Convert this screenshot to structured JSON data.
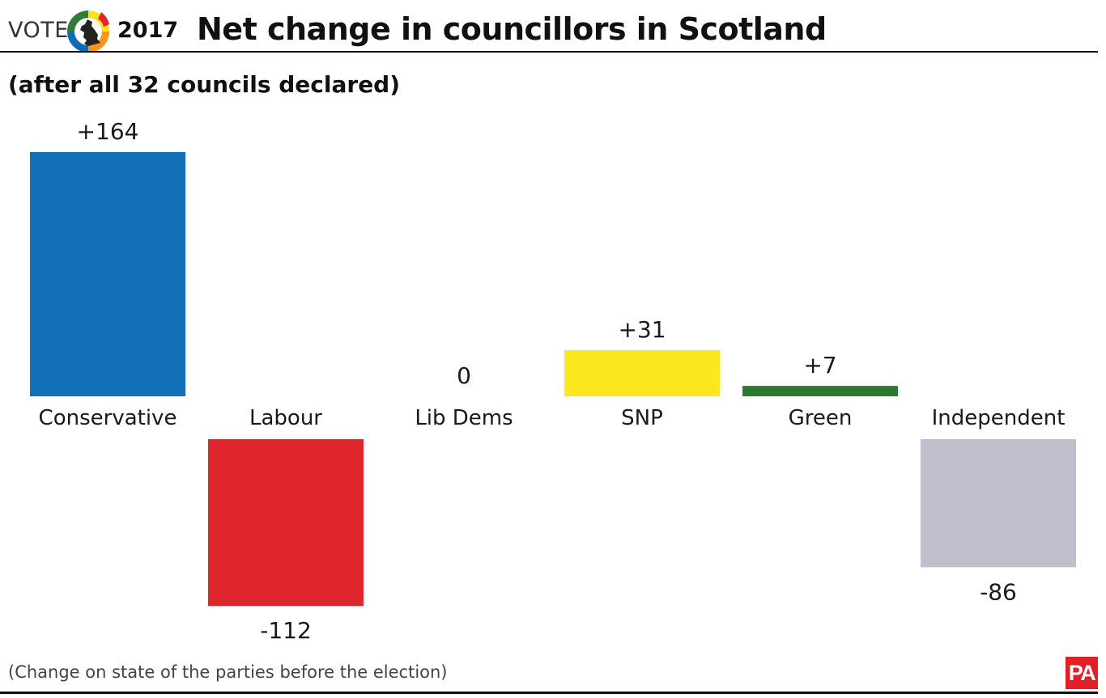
{
  "header": {
    "vote_label": "VOTE",
    "year_label": "2017",
    "title": "Net change in councillors in Scotland",
    "subtitle": "(after all 32 councils declared)",
    "logo_colors": [
      "#0f6cb4",
      "#e2232a",
      "#fbe21d",
      "#f7941d",
      "#2e7d32"
    ]
  },
  "footer": {
    "footnote": "(Change on state of the parties before the election)",
    "pa_logo": "PA",
    "pa_color": "#e01f26"
  },
  "chart_data": {
    "type": "bar",
    "title": "Net change in councillors in Scotland",
    "subtitle": "(after all 32 councils declared)",
    "categories": [
      "Conservative",
      "Labour",
      "Lib Dems",
      "SNP",
      "Green",
      "Independent"
    ],
    "values": [
      164,
      -112,
      0,
      31,
      7,
      -86
    ],
    "value_labels": [
      "+164",
      "-112",
      "0",
      "+31",
      "+7",
      "-86"
    ],
    "colors": [
      "#1170b8",
      "#e0262d",
      "#ffffff",
      "#fbe71d",
      "#2a7b30",
      "#c1bfcd"
    ],
    "xlabel": "",
    "ylabel": "",
    "ylim": [
      -112,
      164
    ],
    "grid": false,
    "legend": "none"
  }
}
